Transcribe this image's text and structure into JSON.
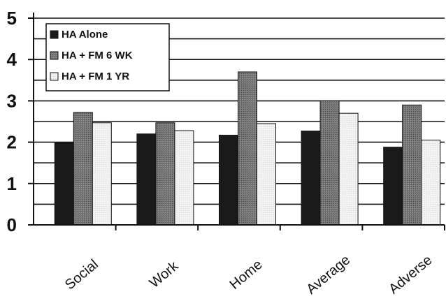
{
  "chart_data": {
    "type": "bar",
    "title": "",
    "xlabel": "",
    "ylabel": "",
    "ylim": [
      0,
      5
    ],
    "yticks": [
      "0",
      "1",
      "2",
      "3",
      "4",
      "5"
    ],
    "categories": [
      "Social",
      "Work",
      "Home",
      "Average",
      "Adverse"
    ],
    "series": [
      {
        "name": "HA Alone",
        "values": [
          2.0,
          2.2,
          2.17,
          2.27,
          1.88
        ],
        "color": "#1a1a1a"
      },
      {
        "name": "HA + FM 6 WK",
        "values": [
          2.72,
          2.47,
          3.7,
          3.0,
          2.9
        ],
        "color": "#6d6d6d"
      },
      {
        "name": "HA + FM 1 YR",
        "values": [
          2.47,
          2.28,
          2.45,
          2.7,
          2.05
        ],
        "color": "#eeeeee"
      }
    ],
    "grid": true,
    "legend_position": "top-left"
  }
}
